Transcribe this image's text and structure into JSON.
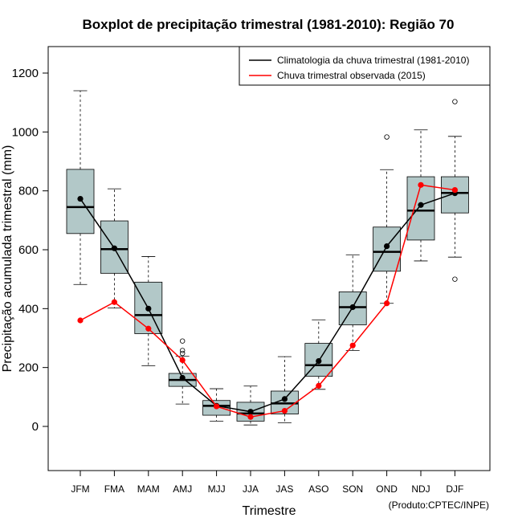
{
  "chart_data": {
    "type": "boxplot",
    "title": "Boxplot de precipitação trimestral (1981-2010): Região 70",
    "xlabel": "Trimestre",
    "ylabel": "Precipitação acumulada trimestral (mm)",
    "ylim": [
      -150,
      1290
    ],
    "yticks": [
      0,
      200,
      400,
      600,
      800,
      1000,
      1200
    ],
    "grid": false,
    "legend_position": "top-right",
    "credit": "(Produto:CPTEC/INPE)",
    "categories": [
      "JFM",
      "FMA",
      "MAM",
      "AMJ",
      "MJJ",
      "JJA",
      "JAS",
      "ASO",
      "SON",
      "OND",
      "NDJ",
      "DJF"
    ],
    "box_color": "#b2c8c8",
    "boxes": [
      {
        "label": "JFM",
        "whisker_low": 482,
        "q1": 655,
        "median": 745,
        "q3": 873,
        "whisker_high": 1140,
        "outliers": []
      },
      {
        "label": "FMA",
        "whisker_low": 402,
        "q1": 520,
        "median": 602,
        "q3": 698,
        "whisker_high": 807,
        "outliers": []
      },
      {
        "label": "MAM",
        "whisker_low": 206,
        "q1": 315,
        "median": 378,
        "q3": 490,
        "whisker_high": 577,
        "outliers": []
      },
      {
        "label": "AMJ",
        "whisker_low": 76,
        "q1": 136,
        "median": 158,
        "q3": 180,
        "whisker_high": 238,
        "outliers": [
          248,
          258,
          290
        ]
      },
      {
        "label": "MJJ",
        "whisker_low": 18,
        "q1": 38,
        "median": 70,
        "q3": 88,
        "whisker_high": 128,
        "outliers": []
      },
      {
        "label": "JJA",
        "whisker_low": 5,
        "q1": 18,
        "median": 44,
        "q3": 82,
        "whisker_high": 137,
        "outliers": []
      },
      {
        "label": "JAS",
        "whisker_low": 12,
        "q1": 42,
        "median": 78,
        "q3": 120,
        "whisker_high": 237,
        "outliers": []
      },
      {
        "label": "ASO",
        "whisker_low": 126,
        "q1": 170,
        "median": 208,
        "q3": 282,
        "whisker_high": 362,
        "outliers": []
      },
      {
        "label": "SON",
        "whisker_low": 258,
        "q1": 345,
        "median": 405,
        "q3": 457,
        "whisker_high": 583,
        "outliers": []
      },
      {
        "label": "OND",
        "whisker_low": 418,
        "q1": 527,
        "median": 593,
        "q3": 677,
        "whisker_high": 872,
        "outliers": [
          983
        ]
      },
      {
        "label": "NDJ",
        "whisker_low": 562,
        "q1": 633,
        "median": 733,
        "q3": 848,
        "whisker_high": 1007,
        "outliers": []
      },
      {
        "label": "DJF",
        "whisker_low": 575,
        "q1": 725,
        "median": 793,
        "q3": 848,
        "whisker_high": 985,
        "outliers": [
          500,
          1103
        ]
      }
    ],
    "series": [
      {
        "name": "Climatologia da chuva trimestral (1981-2010)",
        "color": "#000000",
        "values": [
          773,
          605,
          400,
          165,
          70,
          50,
          93,
          222,
          405,
          612,
          752,
          792
        ]
      },
      {
        "name": "Chuva trimestral observada (2015)",
        "color": "#ff0000",
        "values": [
          360,
          422,
          332,
          225,
          68,
          32,
          53,
          138,
          275,
          418,
          820,
          803
        ]
      }
    ]
  }
}
